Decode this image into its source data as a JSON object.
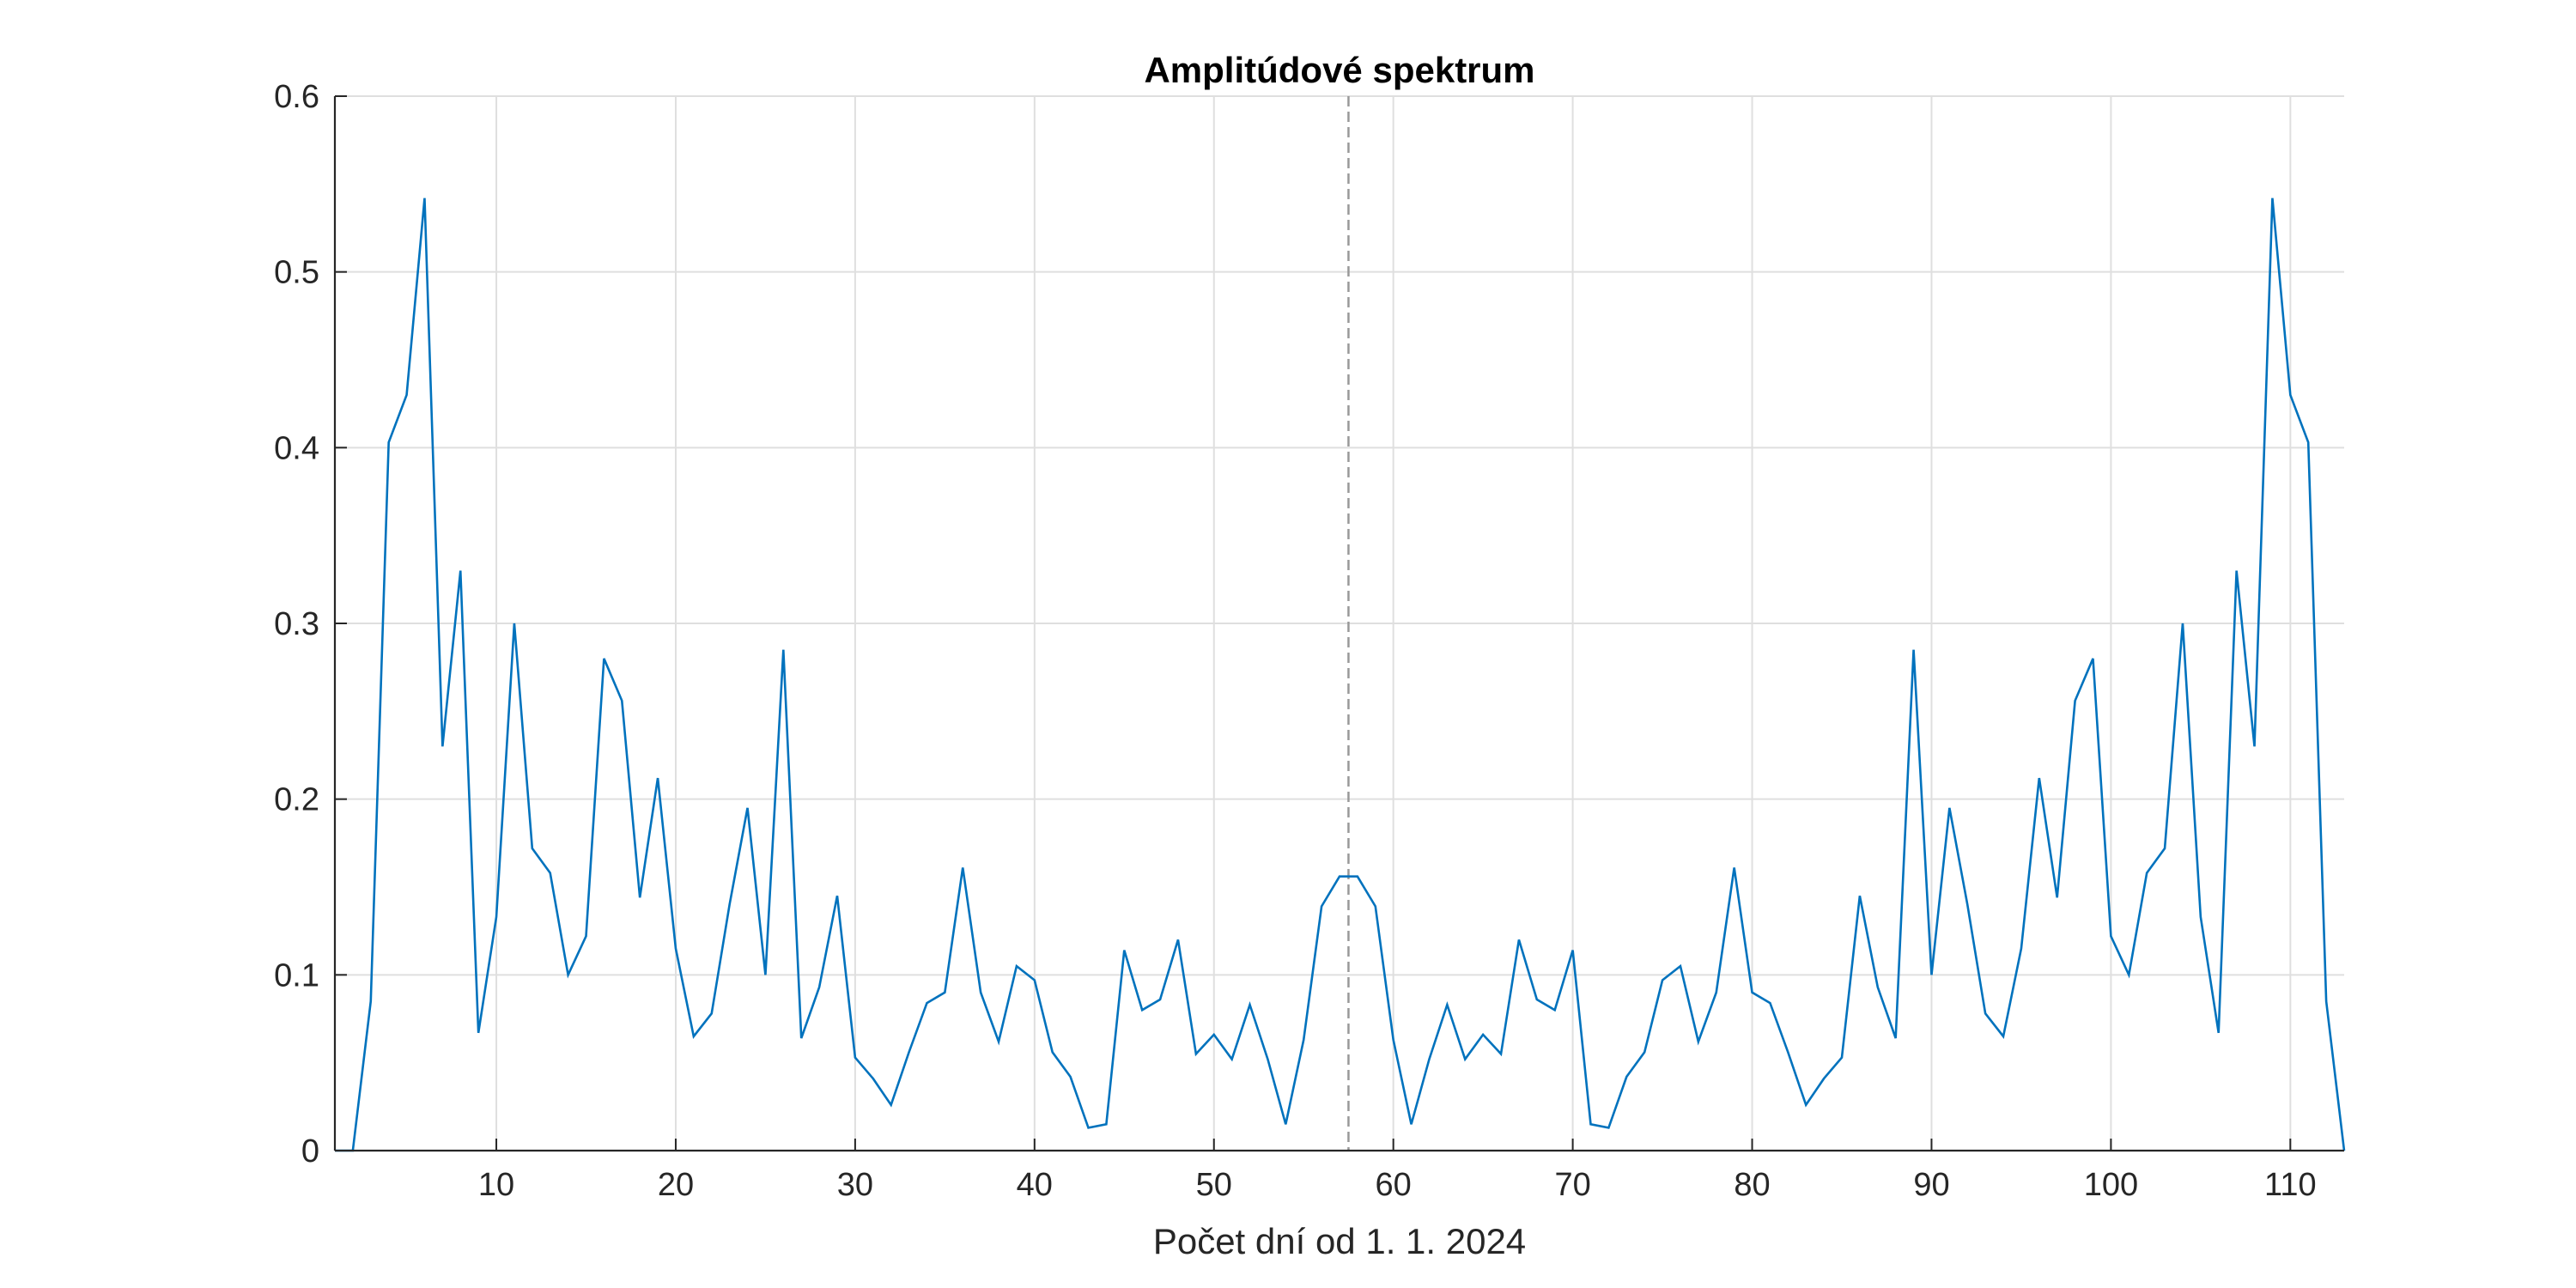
{
  "chart_data": {
    "type": "line",
    "title": "Amplitúdové spektrum",
    "xlabel": "Počet dní od 1. 1. 2024",
    "ylabel": "",
    "xlim": [
      1,
      113
    ],
    "ylim": [
      0,
      0.6
    ],
    "xticks": [
      10,
      20,
      30,
      40,
      50,
      60,
      70,
      80,
      90,
      100,
      110
    ],
    "yticks": [
      0,
      0.1,
      0.2,
      0.3,
      0.4,
      0.5,
      0.6
    ],
    "grid": true,
    "line_color": "#0072BD",
    "grid_color": "#DFDFDF",
    "axis_color": "#262626",
    "reference_line": {
      "x": 57.5,
      "style": "dashed",
      "color": "#999999"
    },
    "series": [
      {
        "x": [
          1,
          2,
          3,
          4,
          5,
          6,
          7,
          8,
          9,
          10,
          11,
          12,
          13,
          14,
          15,
          16,
          17,
          18,
          19,
          20,
          21,
          22,
          23,
          24,
          25,
          26,
          27,
          28,
          29,
          30,
          31,
          32,
          33,
          34,
          35,
          36,
          37,
          38,
          39,
          40,
          41,
          42,
          43,
          44,
          45,
          46,
          47,
          48,
          49,
          50,
          51,
          52,
          53,
          54,
          55,
          56,
          57,
          58,
          59,
          60,
          61,
          62,
          63,
          64,
          65,
          66,
          67,
          68,
          69,
          70,
          71,
          72,
          73,
          74,
          75,
          76,
          77,
          78,
          79,
          80,
          81,
          82,
          83,
          84,
          85,
          86,
          87,
          88,
          89,
          90,
          91,
          92,
          93,
          94,
          95,
          96,
          97,
          98,
          99,
          100,
          101,
          102,
          103,
          104,
          105,
          106,
          107,
          108,
          109,
          110,
          111,
          112,
          113
        ],
        "values": [
          0,
          0,
          0.085,
          0.403,
          0.43,
          0.542,
          0.23,
          0.33,
          0.067,
          0.133,
          0.3,
          0.172,
          0.158,
          0.1,
          0.122,
          0.28,
          0.256,
          0.144,
          0.212,
          0.115,
          0.065,
          0.078,
          0.14,
          0.195,
          0.1,
          0.285,
          0.064,
          0.093,
          0.145,
          0.053,
          0.041,
          0.026,
          0.056,
          0.084,
          0.09,
          0.161,
          0.09,
          0.062,
          0.105,
          0.097,
          0.056,
          0.042,
          0.013,
          0.015,
          0.114,
          0.08,
          0.086,
          0.12,
          0.055,
          0.066,
          0.052,
          0.083,
          0.052,
          0.015,
          0.063,
          0.139,
          0.156,
          0.156,
          0.139,
          0.063,
          0.015,
          0.052,
          0.083,
          0.052,
          0.066,
          0.055,
          0.12,
          0.086,
          0.08,
          0.114,
          0.015,
          0.013,
          0.042,
          0.056,
          0.097,
          0.105,
          0.062,
          0.09,
          0.161,
          0.09,
          0.084,
          0.056,
          0.026,
          0.041,
          0.053,
          0.145,
          0.093,
          0.064,
          0.285,
          0.1,
          0.195,
          0.14,
          0.078,
          0.065,
          0.115,
          0.212,
          0.144,
          0.256,
          0.28,
          0.122,
          0.1,
          0.158,
          0.172,
          0.3,
          0.133,
          0.067,
          0.33,
          0.23,
          0.542,
          0.43,
          0.403,
          0.085,
          0
        ]
      }
    ]
  }
}
